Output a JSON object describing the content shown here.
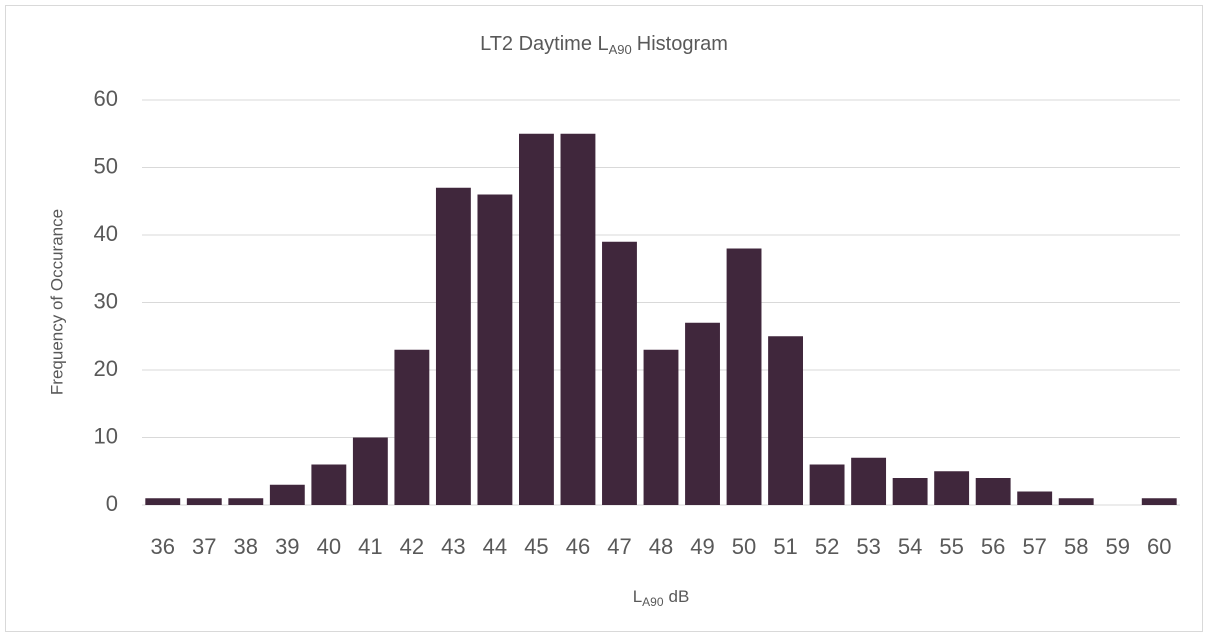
{
  "chart_data": {
    "type": "bar",
    "title": {
      "text": "LT2 Daytime L",
      "subscript": "A90",
      "suffix": "Histogram"
    },
    "x_label": {
      "text": "L",
      "subscript": "A90",
      "suffix": "dB"
    },
    "y_label": "Frequency of Occurance",
    "categories": [
      "36",
      "37",
      "38",
      "39",
      "40",
      "41",
      "42",
      "43",
      "44",
      "45",
      "46",
      "47",
      "48",
      "49",
      "50",
      "51",
      "52",
      "53",
      "54",
      "55",
      "56",
      "57",
      "58",
      "59",
      "60"
    ],
    "values": [
      1,
      1,
      1,
      3,
      6,
      10,
      23,
      47,
      46,
      55,
      55,
      39,
      23,
      27,
      38,
      25,
      6,
      7,
      4,
      5,
      4,
      2,
      1,
      0,
      1
    ],
    "color": "#40273c",
    "ylim": [
      0,
      60
    ],
    "yticks": [
      0,
      10,
      20,
      30,
      40,
      50,
      60
    ],
    "grid": true
  }
}
